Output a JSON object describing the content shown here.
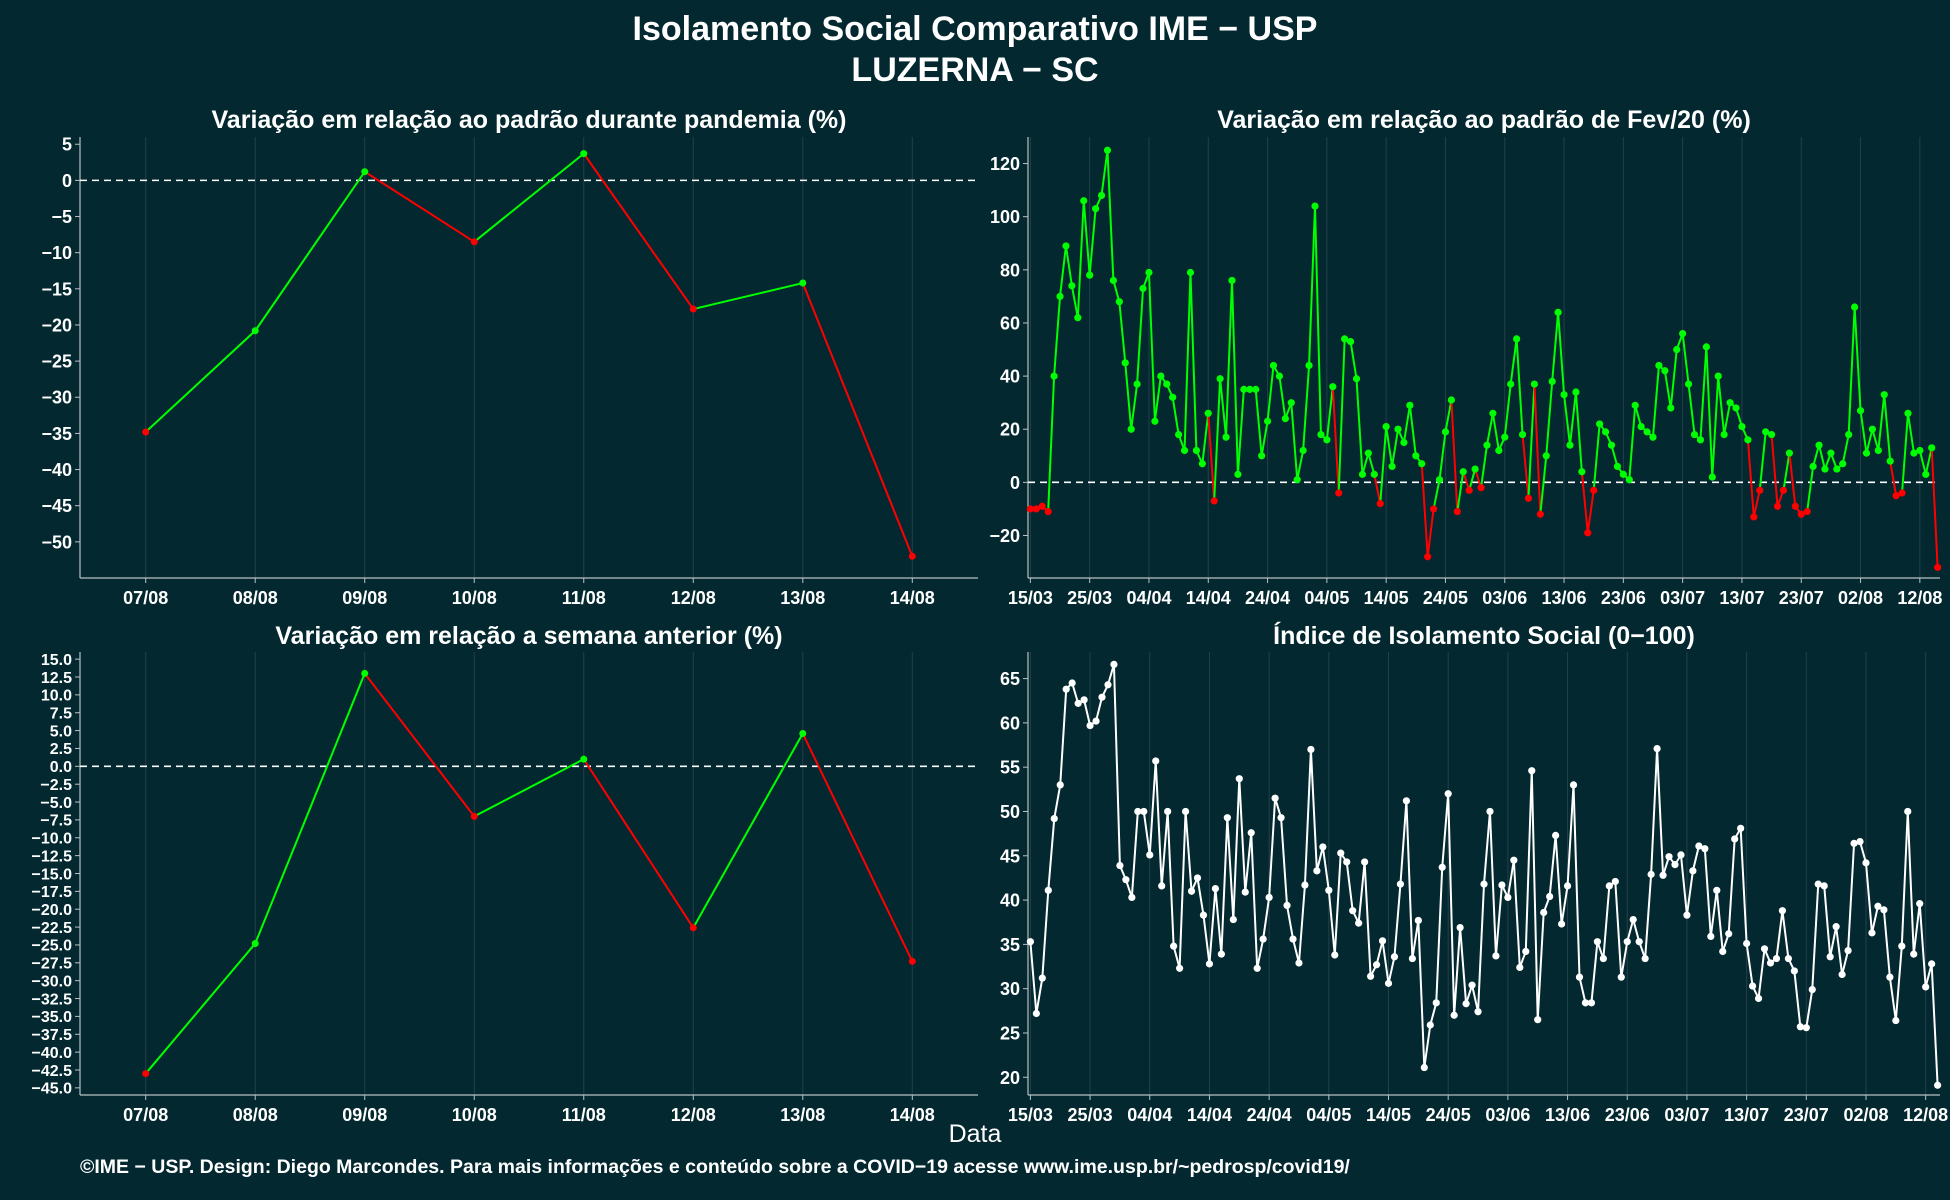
{
  "header": {
    "title": "Isolamento Social Comparativo IME − USP",
    "subtitle": "LUZERNA − SC"
  },
  "xlabel": "Data",
  "footer": "©IME − USP. Design: Diego Marcondes. Para mais informações e conteúdo sobre a COVID−19 acesse www.ime.usp.br/~pedrosp/covid19/",
  "colors": {
    "background": "#03282f",
    "increase": "#00ff00",
    "decrease": "#ff0000",
    "index": "#ffffff",
    "grid": "#24404a",
    "zero_line": "#ffffff"
  },
  "chart_data": [
    {
      "id": "pandemia",
      "type": "line",
      "title": "Variação em relação ao padrão durante pandemia (%)",
      "categories": [
        "07/08",
        "08/08",
        "09/08",
        "10/08",
        "11/08",
        "12/08",
        "13/08",
        "14/08"
      ],
      "values": [
        -34.8,
        -20.8,
        1.2,
        -8.5,
        3.7,
        -17.8,
        -14.2,
        -52.0
      ],
      "ylim": [
        -55,
        6
      ],
      "yticks": [
        5,
        0,
        -5,
        -10,
        -15,
        -20,
        -25,
        -30,
        -35,
        -40,
        -45,
        -50
      ],
      "reference_line": 0,
      "coloring": "segment green when rising, red when falling"
    },
    {
      "id": "fev20",
      "type": "line",
      "title": "Variação em relação ao padrão de Fev/20 (%)",
      "start_date": "15/03",
      "xticks": [
        "15/03",
        "25/03",
        "04/04",
        "14/04",
        "24/04",
        "04/05",
        "14/05",
        "24/05",
        "03/06",
        "13/06",
        "23/06",
        "03/07",
        "13/07",
        "23/07",
        "02/08",
        "12/08"
      ],
      "values": [
        -10,
        -10,
        -9,
        -11,
        40,
        70,
        89,
        74,
        62,
        106,
        78,
        103,
        108,
        125,
        76,
        68,
        45,
        20,
        37,
        73,
        79,
        23,
        40,
        37,
        32,
        18,
        12,
        79,
        12,
        7,
        26,
        -7,
        39,
        17,
        76,
        3,
        35,
        35,
        35,
        10,
        23,
        44,
        40,
        24,
        30,
        1,
        12,
        44,
        104,
        18,
        16,
        36,
        -4,
        54,
        53,
        39,
        3,
        11,
        3,
        -8,
        21,
        6,
        20,
        15,
        29,
        10,
        7,
        -28,
        -10,
        1,
        19,
        31,
        -11,
        4,
        -3,
        5,
        -2,
        14,
        26,
        12,
        17,
        37,
        54,
        18,
        -6,
        37,
        -12,
        10,
        38,
        64,
        33,
        14,
        34,
        4,
        -19,
        -3,
        22,
        19,
        14,
        6,
        3,
        1,
        29,
        21,
        19,
        17,
        44,
        42,
        28,
        50,
        56,
        37,
        18,
        16,
        51,
        2,
        40,
        18,
        30,
        28,
        21,
        16,
        -13,
        -3,
        19,
        18,
        -9,
        -3,
        11,
        -9,
        -12,
        -11,
        6,
        14,
        5,
        11,
        5,
        7,
        18,
        66,
        27,
        11,
        20,
        12,
        33,
        8,
        -5,
        -4,
        26,
        11,
        12,
        3,
        13,
        -32
      ],
      "ylim": [
        -36,
        130
      ],
      "yticks": [
        120,
        100,
        80,
        60,
        40,
        20,
        0,
        -20
      ],
      "reference_line": 0,
      "coloring": "point green when value above 0, red when below"
    },
    {
      "id": "semana",
      "type": "line",
      "title": "Variação em relação a semana anterior (%)",
      "categories": [
        "07/08",
        "08/08",
        "09/08",
        "10/08",
        "11/08",
        "12/08",
        "13/08",
        "14/08"
      ],
      "values": [
        -43.0,
        -24.8,
        13.0,
        -7.0,
        1.0,
        -22.6,
        4.6,
        -27.3
      ],
      "ylim": [
        -46,
        16
      ],
      "yticks": [
        15.0,
        12.5,
        10.0,
        7.5,
        5.0,
        2.5,
        0.0,
        -2.5,
        -5.0,
        -7.5,
        -10.0,
        -12.5,
        -15.0,
        -17.5,
        -20.0,
        -22.5,
        -25.0,
        -27.5,
        -30.0,
        -32.5,
        -35.0,
        -37.5,
        -40.0,
        -42.5,
        -45.0
      ],
      "reference_line": 0,
      "coloring": "segment green when rising, red when falling"
    },
    {
      "id": "indice",
      "type": "line",
      "title": "Índice de Isolamento Social (0−100)",
      "start_date": "15/03",
      "xticks": [
        "15/03",
        "25/03",
        "04/04",
        "14/04",
        "24/04",
        "04/05",
        "14/05",
        "24/05",
        "03/06",
        "13/06",
        "23/06",
        "03/07",
        "13/07",
        "23/07",
        "02/08",
        "12/08"
      ],
      "values": [
        35.3,
        27.2,
        31.2,
        41.1,
        49.2,
        53.0,
        63.8,
        64.5,
        62.2,
        62.6,
        59.7,
        60.2,
        62.9,
        64.3,
        66.6,
        43.9,
        42.3,
        40.3,
        50.0,
        50.0,
        45.1,
        55.7,
        41.6,
        50.0,
        34.8,
        32.3,
        50.0,
        41.0,
        42.5,
        38.3,
        32.8,
        41.3,
        33.9,
        49.3,
        37.8,
        53.7,
        40.9,
        47.6,
        32.3,
        35.6,
        40.3,
        51.5,
        49.3,
        39.4,
        35.6,
        32.9,
        41.7,
        57.0,
        43.3,
        46.0,
        41.1,
        33.8,
        45.3,
        44.3,
        38.8,
        37.4,
        44.3,
        31.4,
        32.7,
        35.4,
        30.6,
        33.6,
        41.8,
        51.2,
        33.4,
        37.7,
        21.1,
        25.9,
        28.4,
        43.7,
        52.0,
        27.0,
        36.9,
        28.3,
        30.4,
        27.4,
        41.8,
        50.0,
        33.7,
        41.7,
        40.3,
        44.5,
        32.4,
        34.2,
        54.6,
        26.5,
        38.6,
        40.4,
        47.3,
        37.3,
        41.6,
        53.0,
        31.3,
        28.4,
        28.4,
        35.3,
        33.4,
        41.6,
        42.1,
        31.3,
        35.3,
        37.8,
        35.3,
        33.4,
        42.9,
        57.1,
        42.8,
        44.9,
        44.0,
        45.1,
        38.3,
        43.3,
        46.1,
        45.8,
        35.9,
        41.1,
        34.2,
        36.2,
        46.9,
        48.1,
        35.1,
        30.3,
        28.9,
        34.5,
        32.9,
        33.4,
        38.8,
        33.4,
        32.0,
        25.7,
        25.6,
        29.9,
        41.8,
        41.6,
        33.6,
        37.0,
        31.6,
        34.3,
        46.4,
        46.6,
        44.2,
        36.3,
        39.3,
        38.9,
        31.3,
        26.4,
        34.8,
        50.0,
        33.9,
        39.6,
        30.2,
        32.8,
        19.1
      ],
      "ylim": [
        18,
        68
      ],
      "yticks": [
        65,
        60,
        55,
        50,
        45,
        40,
        35,
        30,
        25,
        20
      ],
      "coloring": "single white series"
    }
  ]
}
